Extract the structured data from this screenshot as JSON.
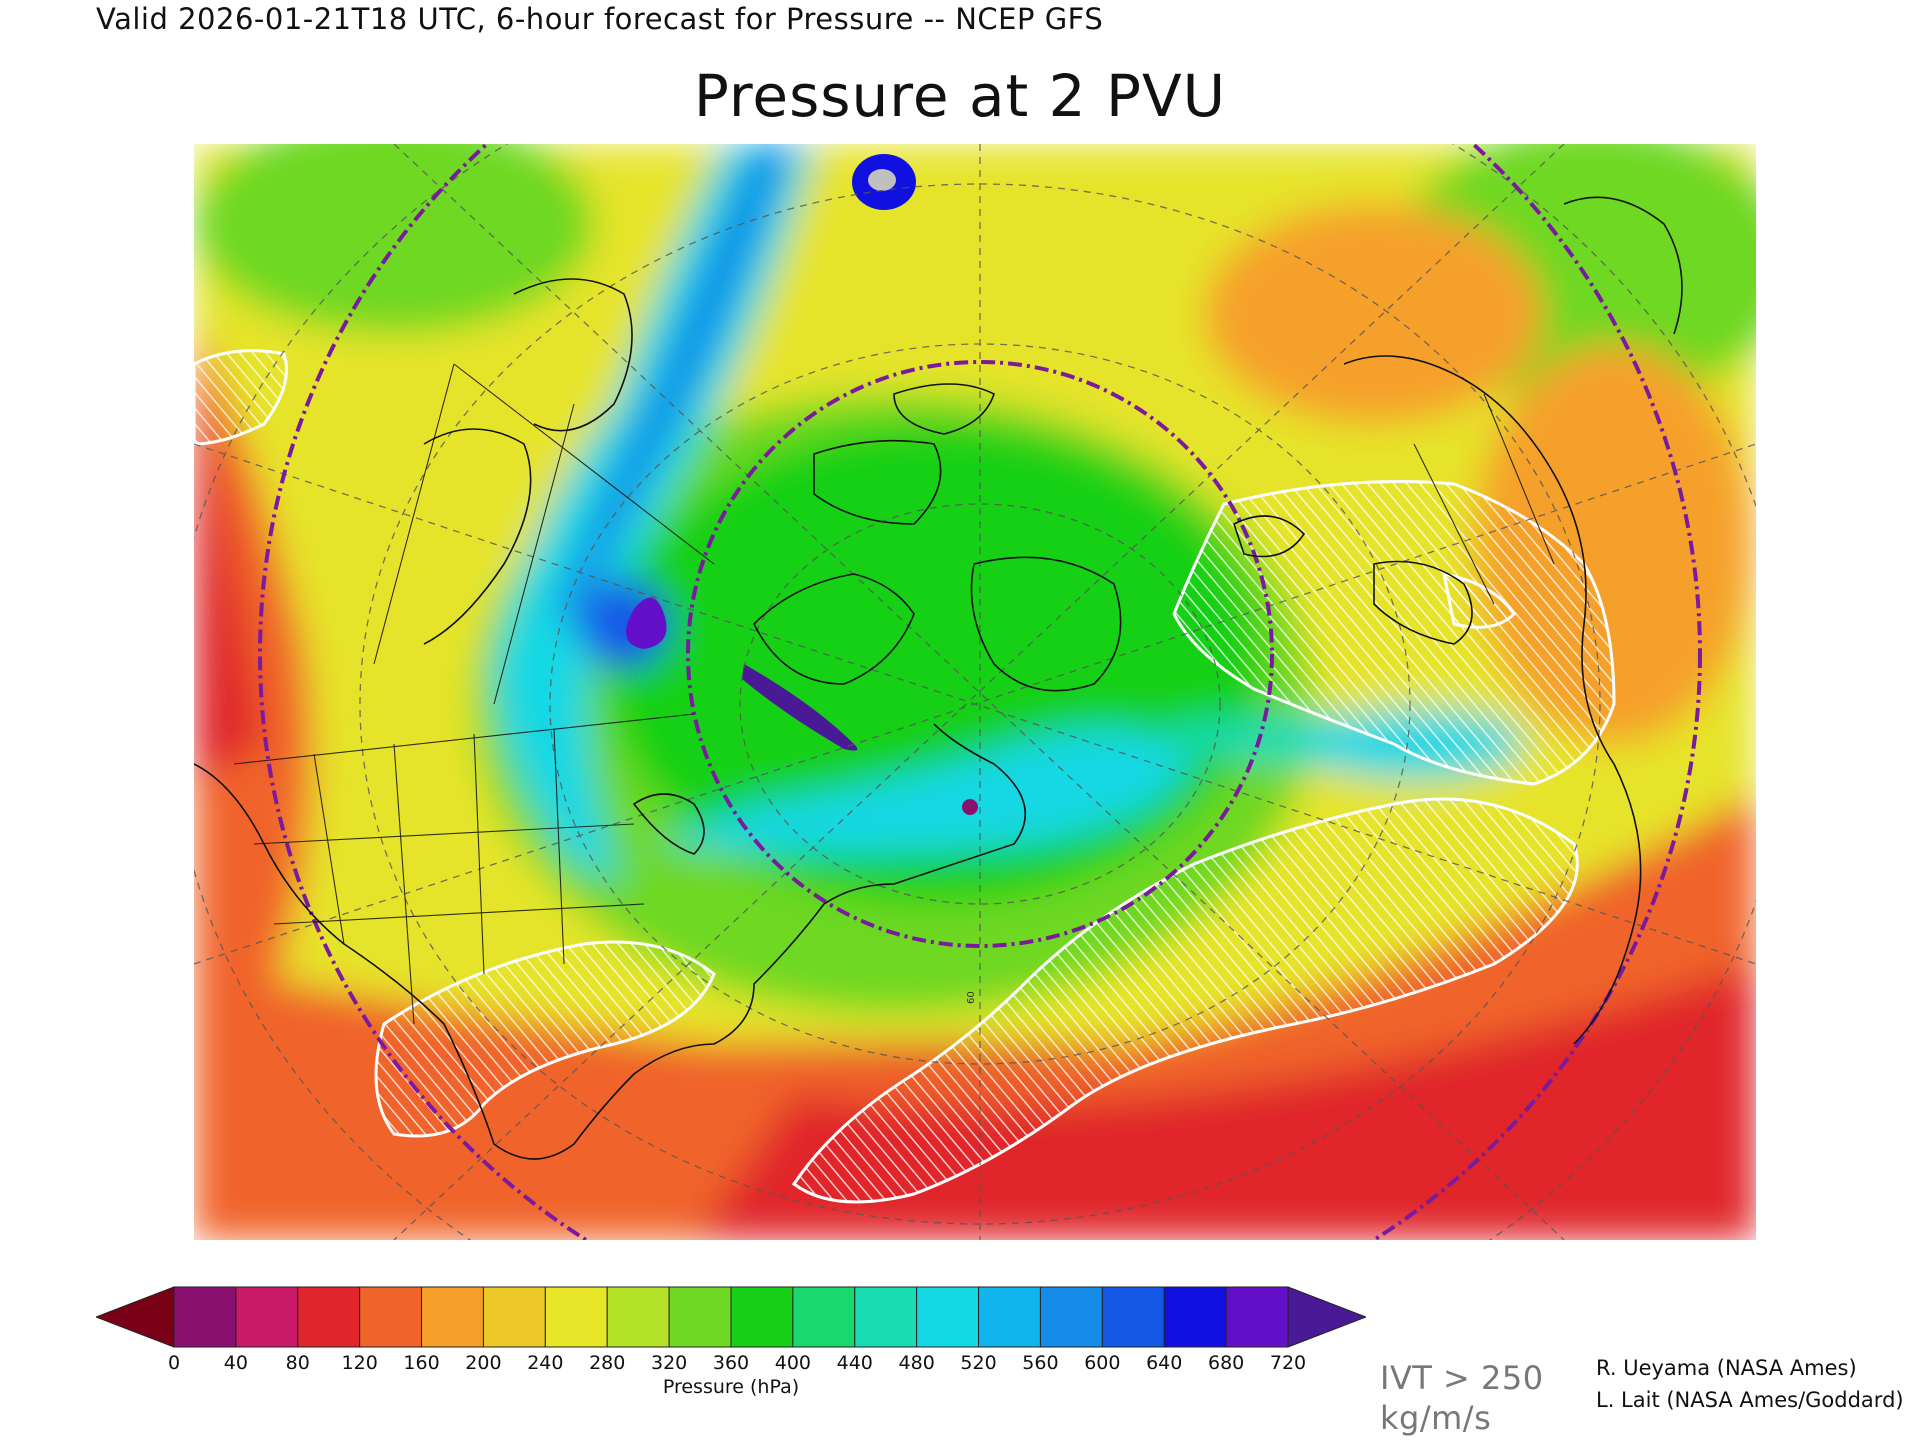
{
  "header": {
    "valid_text": "Valid 2026-01-21T18 UTC, 6-hour forecast for Pressure -- NCEP GFS"
  },
  "title": "Pressure at 2 PVU",
  "colorbar": {
    "label": "Pressure (hPa)",
    "ticks": [
      "0",
      "40",
      "80",
      "120",
      "160",
      "200",
      "240",
      "280",
      "320",
      "360",
      "400",
      "440",
      "480",
      "520",
      "560",
      "600",
      "640",
      "680",
      "720"
    ],
    "colors": [
      "#7a0018",
      "#8a1070",
      "#c81a66",
      "#e0252c",
      "#f0642a",
      "#f5a02a",
      "#ecc928",
      "#e8e628",
      "#b4e228",
      "#6ed824",
      "#18d018",
      "#18d86e",
      "#18dcb2",
      "#14d8e4",
      "#10b4ec",
      "#148ce8",
      "#1458e8",
      "#1010e0",
      "#6410c8",
      "#4a1a96"
    ]
  },
  "map": {
    "cursor_mark": "60",
    "region": "North America, North Atlantic, Europe"
  },
  "legend_ivt": {
    "line1": "IVT > 250",
    "line2": "kg/m/s"
  },
  "credits": {
    "line1": "R. Ueyama (NASA Ames)",
    "line2": "L. Lait (NASA Ames/Goddard)"
  }
}
